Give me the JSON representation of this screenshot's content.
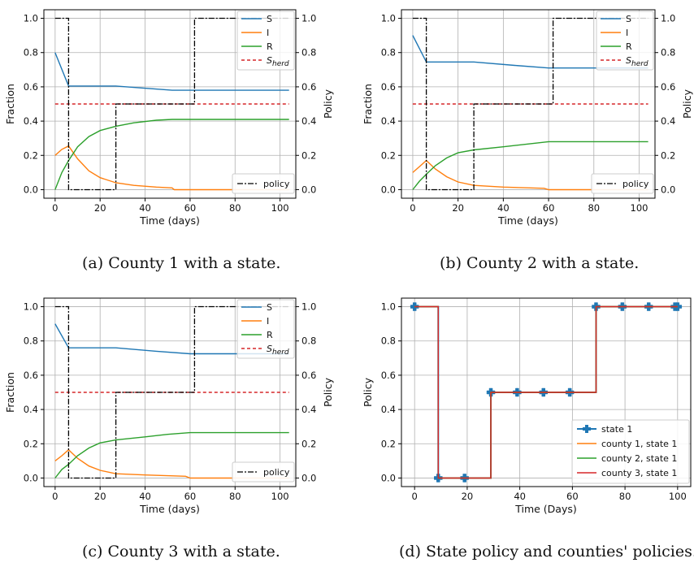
{
  "captions": [
    "(a) County 1 with a state.",
    "(b) County 2 with a state.",
    "(c) County 3 with a state.",
    "(d) State policy and counties' policies."
  ],
  "colors": {
    "S": "#1f77b4",
    "I": "#ff7f0e",
    "R": "#2ca02c",
    "herd": "#d62728",
    "policy": "#000000",
    "grid": "#b0b0b0"
  },
  "chart_data": [
    {
      "type": "line",
      "xlabel": "Time (days)",
      "ylabel": "Fraction",
      "y2label": "Policy",
      "xlim": [
        -5,
        107
      ],
      "ylim": [
        -0.05,
        1.05
      ],
      "y2lim": [
        -0.05,
        1.05
      ],
      "xticks": [
        0,
        20,
        40,
        60,
        80,
        100
      ],
      "yticks": [
        "0.0",
        "0.2",
        "0.4",
        "0.6",
        "0.8",
        "1.0"
      ],
      "grid": true,
      "legend_top": {
        "position": "upper-right",
        "entries": [
          "S",
          "I",
          "R",
          "S_herd"
        ]
      },
      "legend_bottom": {
        "position": "lower-right",
        "entries": [
          "policy"
        ]
      },
      "series": [
        {
          "name": "S",
          "key": "S",
          "points": [
            [
              0,
              0.8
            ],
            [
              6,
              0.605
            ],
            [
              27,
              0.605
            ],
            [
              52,
              0.58
            ],
            [
              104,
              0.58
            ]
          ]
        },
        {
          "name": "I",
          "key": "I",
          "points": [
            [
              0,
              0.2
            ],
            [
              3,
              0.235
            ],
            [
              6,
              0.255
            ],
            [
              10,
              0.18
            ],
            [
              15,
              0.11
            ],
            [
              20,
              0.07
            ],
            [
              27,
              0.04
            ],
            [
              35,
              0.025
            ],
            [
              45,
              0.015
            ],
            [
              52,
              0.01
            ],
            [
              53,
              0.0
            ],
            [
              104,
              0.0
            ]
          ]
        },
        {
          "name": "R",
          "key": "R",
          "points": [
            [
              0,
              0.0
            ],
            [
              3,
              0.1
            ],
            [
              6,
              0.17
            ],
            [
              10,
              0.25
            ],
            [
              15,
              0.31
            ],
            [
              20,
              0.345
            ],
            [
              27,
              0.37
            ],
            [
              35,
              0.39
            ],
            [
              45,
              0.405
            ],
            [
              52,
              0.41
            ],
            [
              104,
              0.41
            ]
          ]
        },
        {
          "name": "S_herd",
          "key": "herd",
          "dashed": true,
          "points": [
            [
              0,
              0.5
            ],
            [
              104,
              0.5
            ]
          ]
        }
      ],
      "policy": [
        [
          0,
          1.0
        ],
        [
          6,
          1.0
        ],
        [
          6,
          0.0
        ],
        [
          27,
          0.0
        ],
        [
          27,
          0.5
        ],
        [
          62,
          0.5
        ],
        [
          62,
          1.0
        ],
        [
          104,
          1.0
        ]
      ]
    },
    {
      "type": "line",
      "xlabel": "Time (days)",
      "ylabel": "Fraction",
      "y2label": "Policy",
      "xlim": [
        -5,
        107
      ],
      "ylim": [
        -0.05,
        1.05
      ],
      "y2lim": [
        -0.05,
        1.05
      ],
      "xticks": [
        0,
        20,
        40,
        60,
        80,
        100
      ],
      "yticks": [
        "0.0",
        "0.2",
        "0.4",
        "0.6",
        "0.8",
        "1.0"
      ],
      "grid": true,
      "legend_top": {
        "position": "upper-right",
        "entries": [
          "S",
          "I",
          "R",
          "S_herd"
        ]
      },
      "legend_bottom": {
        "position": "lower-right",
        "entries": [
          "policy"
        ]
      },
      "series": [
        {
          "name": "S",
          "key": "S",
          "points": [
            [
              0,
              0.9
            ],
            [
              6,
              0.745
            ],
            [
              27,
              0.745
            ],
            [
              45,
              0.725
            ],
            [
              60,
              0.71
            ],
            [
              104,
              0.71
            ]
          ]
        },
        {
          "name": "I",
          "key": "I",
          "points": [
            [
              0,
              0.1
            ],
            [
              3,
              0.135
            ],
            [
              6,
              0.17
            ],
            [
              10,
              0.12
            ],
            [
              15,
              0.075
            ],
            [
              20,
              0.045
            ],
            [
              27,
              0.025
            ],
            [
              40,
              0.015
            ],
            [
              58,
              0.008
            ],
            [
              60,
              0.0
            ],
            [
              104,
              0.0
            ]
          ]
        },
        {
          "name": "R",
          "key": "R",
          "points": [
            [
              0,
              0.0
            ],
            [
              3,
              0.05
            ],
            [
              6,
              0.09
            ],
            [
              10,
              0.14
            ],
            [
              15,
              0.185
            ],
            [
              20,
              0.215
            ],
            [
              27,
              0.232
            ],
            [
              40,
              0.25
            ],
            [
              50,
              0.265
            ],
            [
              60,
              0.28
            ],
            [
              104,
              0.28
            ]
          ]
        },
        {
          "name": "S_herd",
          "key": "herd",
          "dashed": true,
          "points": [
            [
              0,
              0.5
            ],
            [
              104,
              0.5
            ]
          ]
        }
      ],
      "policy": [
        [
          0,
          1.0
        ],
        [
          6,
          1.0
        ],
        [
          6,
          0.0
        ],
        [
          27,
          0.0
        ],
        [
          27,
          0.5
        ],
        [
          62,
          0.5
        ],
        [
          62,
          1.0
        ],
        [
          104,
          1.0
        ]
      ]
    },
    {
      "type": "line",
      "xlabel": "Time (days)",
      "ylabel": "Fraction",
      "y2label": "Policy",
      "xlim": [
        -5,
        107
      ],
      "ylim": [
        -0.05,
        1.05
      ],
      "y2lim": [
        -0.05,
        1.05
      ],
      "xticks": [
        0,
        20,
        40,
        60,
        80,
        100
      ],
      "yticks": [
        "0.0",
        "0.2",
        "0.4",
        "0.6",
        "0.8",
        "1.0"
      ],
      "grid": true,
      "legend_top": {
        "position": "upper-right",
        "entries": [
          "S",
          "I",
          "R",
          "S_herd"
        ]
      },
      "legend_bottom": {
        "position": "lower-right",
        "entries": [
          "policy"
        ]
      },
      "series": [
        {
          "name": "S",
          "key": "S",
          "points": [
            [
              0,
              0.9
            ],
            [
              6,
              0.76
            ],
            [
              27,
              0.76
            ],
            [
              45,
              0.74
            ],
            [
              60,
              0.725
            ],
            [
              104,
              0.725
            ]
          ]
        },
        {
          "name": "I",
          "key": "I",
          "points": [
            [
              0,
              0.1
            ],
            [
              3,
              0.13
            ],
            [
              6,
              0.165
            ],
            [
              10,
              0.115
            ],
            [
              15,
              0.07
            ],
            [
              20,
              0.045
            ],
            [
              27,
              0.025
            ],
            [
              40,
              0.018
            ],
            [
              58,
              0.01
            ],
            [
              60,
              0.0
            ],
            [
              104,
              0.0
            ]
          ]
        },
        {
          "name": "R",
          "key": "R",
          "points": [
            [
              0,
              0.0
            ],
            [
              3,
              0.05
            ],
            [
              6,
              0.08
            ],
            [
              10,
              0.13
            ],
            [
              15,
              0.175
            ],
            [
              20,
              0.205
            ],
            [
              27,
              0.222
            ],
            [
              40,
              0.24
            ],
            [
              50,
              0.255
            ],
            [
              60,
              0.265
            ],
            [
              104,
              0.265
            ]
          ]
        },
        {
          "name": "S_herd",
          "key": "herd",
          "dashed": true,
          "points": [
            [
              0,
              0.5
            ],
            [
              104,
              0.5
            ]
          ]
        }
      ],
      "policy": [
        [
          0,
          1.0
        ],
        [
          6,
          1.0
        ],
        [
          6,
          0.0
        ],
        [
          27,
          0.0
        ],
        [
          27,
          0.5
        ],
        [
          62,
          0.5
        ],
        [
          62,
          1.0
        ],
        [
          104,
          1.0
        ]
      ]
    },
    {
      "type": "line",
      "xlabel": "Time (Days)",
      "ylabel": "Policy",
      "xlim": [
        -5,
        105
      ],
      "ylim": [
        -0.05,
        1.05
      ],
      "xticks": [
        0,
        20,
        40,
        60,
        80,
        100
      ],
      "yticks": [
        "0.0",
        "0.2",
        "0.4",
        "0.6",
        "0.8",
        "1.0"
      ],
      "grid": true,
      "legend": {
        "position": "lower-right",
        "entries": [
          "state 1",
          "county 1, state 1",
          "county 2, state 1",
          "county 3, state 1"
        ]
      },
      "series": [
        {
          "name": "state 1",
          "key": "S",
          "markers": true,
          "points": [
            [
              0,
              1.0
            ],
            [
              9,
              1.0
            ],
            [
              9,
              0.0
            ],
            [
              19,
              0.0
            ],
            [
              29,
              0.0
            ],
            [
              29,
              0.5
            ],
            [
              39,
              0.5
            ],
            [
              49,
              0.5
            ],
            [
              59,
              0.5
            ],
            [
              69,
              0.5
            ],
            [
              69,
              1.0
            ],
            [
              79,
              1.0
            ],
            [
              89,
              1.0
            ],
            [
              99,
              1.0
            ],
            [
              100,
              1.0
            ]
          ],
          "marker_points": [
            [
              0,
              1.0
            ],
            [
              9,
              0.0
            ],
            [
              19,
              0.0
            ],
            [
              29,
              0.5
            ],
            [
              39,
              0.5
            ],
            [
              49,
              0.5
            ],
            [
              59,
              0.5
            ],
            [
              69,
              1.0
            ],
            [
              79,
              1.0
            ],
            [
              89,
              1.0
            ],
            [
              99,
              1.0
            ],
            [
              100,
              1.0
            ]
          ]
        },
        {
          "name": "county 1, state 1",
          "key": "I",
          "points": [
            [
              0,
              1.0
            ],
            [
              9,
              1.0
            ],
            [
              9,
              0.0
            ],
            [
              29,
              0.0
            ],
            [
              29,
              0.5
            ],
            [
              69,
              0.5
            ],
            [
              69,
              1.0
            ],
            [
              100,
              1.0
            ]
          ]
        },
        {
          "name": "county 2, state 1",
          "key": "R",
          "points": [
            [
              0,
              1.0
            ],
            [
              9,
              1.0
            ],
            [
              9,
              0.0
            ],
            [
              29,
              0.0
            ],
            [
              29,
              0.5
            ],
            [
              69,
              0.5
            ],
            [
              69,
              1.0
            ],
            [
              100,
              1.0
            ]
          ]
        },
        {
          "name": "county 3, state 1",
          "key": "herd",
          "points": [
            [
              0,
              1.0
            ],
            [
              9,
              1.0
            ],
            [
              9,
              0.0
            ],
            [
              29,
              0.0
            ],
            [
              29,
              0.5
            ],
            [
              69,
              0.5
            ],
            [
              69,
              1.0
            ],
            [
              100,
              1.0
            ]
          ]
        }
      ]
    }
  ]
}
